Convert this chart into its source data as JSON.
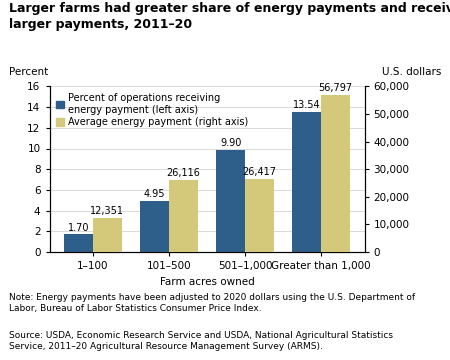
{
  "title": "Larger farms had greater share of energy payments and received\nlarger payments, 2011–20",
  "categories": [
    "1–100",
    "101–500",
    "501–1,000",
    "Greater than 1,000"
  ],
  "percent_values": [
    1.7,
    4.95,
    9.9,
    13.54
  ],
  "dollar_values": [
    12351,
    26116,
    26417,
    56797
  ],
  "percent_labels": [
    "1.70",
    "4.95",
    "9.90",
    "13.54"
  ],
  "dollar_labels": [
    "12,351",
    "26,116",
    "26,417",
    "56,797"
  ],
  "bar_color_blue": "#2E5F8A",
  "bar_color_gold": "#D4C87A",
  "xlabel": "Farm acres owned",
  "ylabel_left": "Percent",
  "ylabel_right": "U.S. dollars",
  "ylim_left": [
    0,
    16
  ],
  "ylim_right": [
    0,
    60000
  ],
  "yticks_left": [
    0,
    2,
    4,
    6,
    8,
    10,
    12,
    14,
    16
  ],
  "yticks_right": [
    0,
    10000,
    20000,
    30000,
    40000,
    50000,
    60000
  ],
  "ytick_labels_right": [
    "0",
    "10,000",
    "20,000",
    "30,000",
    "40,000",
    "50,000",
    "60,000"
  ],
  "legend_label_blue": "Percent of operations receiving\nenergy payment (left axis)",
  "legend_label_gold": "Average energy payment (right axis)",
  "note_text": "Note: Energy payments have been adjusted to 2020 dollars using the U.S. Department of\nLabor, Bureau of Labor Statistics Consumer Price Index.",
  "source_text": "Source: USDA, Economic Research Service and USDA, National Agricultural Statistics\nService, 2011–20 Agricultural Resource Management Survey (ARMS).",
  "background_color": "#FFFFFF",
  "title_fontsize": 9.0,
  "axis_fontsize": 7.5,
  "tick_fontsize": 7.5,
  "label_fontsize": 7.0,
  "note_fontsize": 6.5
}
